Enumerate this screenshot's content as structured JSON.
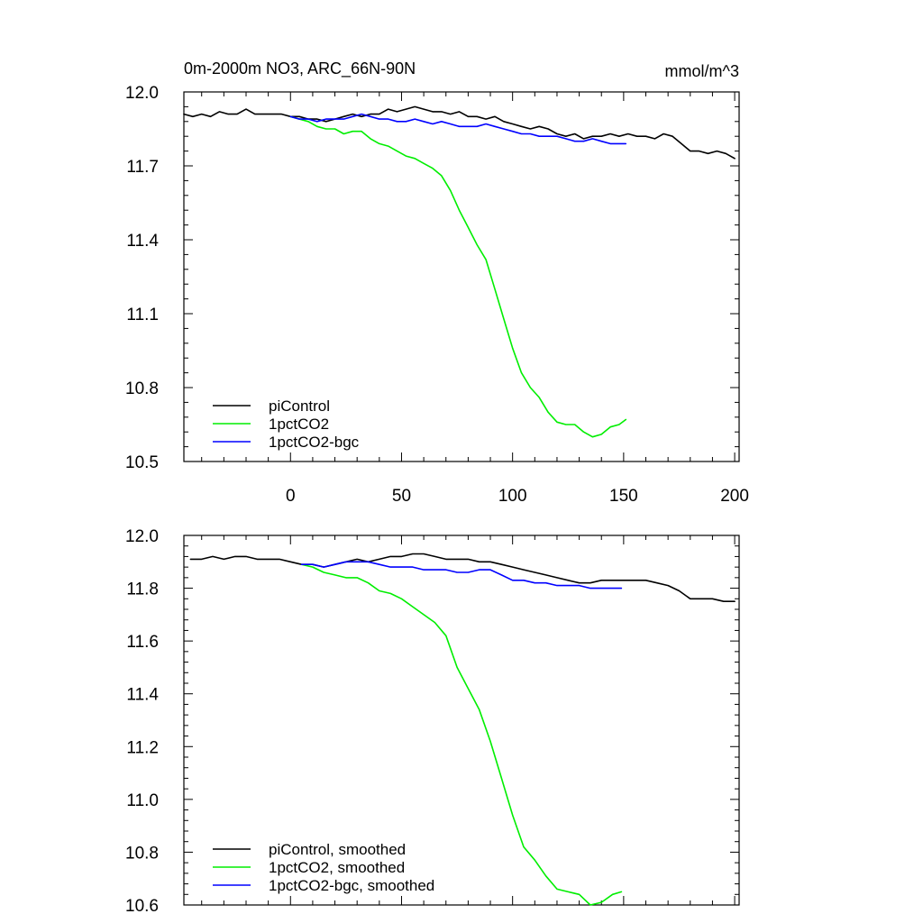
{
  "chart_data": [
    {
      "type": "line",
      "title": "0m-2000m NO3, ARC_66N-90N",
      "units": "mmol/m^3",
      "xlim": [
        -48,
        202
      ],
      "ylim": [
        10.5,
        12.0
      ],
      "xticks": [
        0,
        50,
        100,
        150,
        200
      ],
      "yticks": [
        10.5,
        10.8,
        11.1,
        11.4,
        11.7,
        12.0
      ],
      "ytick_labels": [
        "10.5",
        "10.8",
        "11.1",
        "11.4",
        "11.7",
        "12.0"
      ],
      "show_xtick_labels": true,
      "legend_position": "bottom-left",
      "series": [
        {
          "name": "piControl",
          "color": "#000000",
          "points": [
            [
              -48,
              11.91
            ],
            [
              -44,
              11.9
            ],
            [
              -40,
              11.91
            ],
            [
              -36,
              11.9
            ],
            [
              -32,
              11.92
            ],
            [
              -28,
              11.91
            ],
            [
              -24,
              11.91
            ],
            [
              -20,
              11.93
            ],
            [
              -16,
              11.91
            ],
            [
              -12,
              11.91
            ],
            [
              -8,
              11.91
            ],
            [
              -4,
              11.91
            ],
            [
              0,
              11.9
            ],
            [
              4,
              11.9
            ],
            [
              8,
              11.89
            ],
            [
              12,
              11.89
            ],
            [
              16,
              11.88
            ],
            [
              20,
              11.89
            ],
            [
              24,
              11.9
            ],
            [
              28,
              11.91
            ],
            [
              32,
              11.9
            ],
            [
              36,
              11.91
            ],
            [
              40,
              11.91
            ],
            [
              44,
              11.93
            ],
            [
              48,
              11.92
            ],
            [
              52,
              11.93
            ],
            [
              56,
              11.94
            ],
            [
              60,
              11.93
            ],
            [
              64,
              11.92
            ],
            [
              68,
              11.92
            ],
            [
              72,
              11.91
            ],
            [
              76,
              11.92
            ],
            [
              80,
              11.9
            ],
            [
              84,
              11.9
            ],
            [
              88,
              11.89
            ],
            [
              92,
              11.9
            ],
            [
              96,
              11.88
            ],
            [
              100,
              11.87
            ],
            [
              104,
              11.86
            ],
            [
              108,
              11.85
            ],
            [
              112,
              11.86
            ],
            [
              116,
              11.85
            ],
            [
              120,
              11.83
            ],
            [
              124,
              11.82
            ],
            [
              128,
              11.83
            ],
            [
              132,
              11.81
            ],
            [
              136,
              11.82
            ],
            [
              140,
              11.82
            ],
            [
              144,
              11.83
            ],
            [
              148,
              11.82
            ],
            [
              152,
              11.83
            ],
            [
              156,
              11.82
            ],
            [
              160,
              11.82
            ],
            [
              164,
              11.81
            ],
            [
              168,
              11.83
            ],
            [
              172,
              11.82
            ],
            [
              176,
              11.79
            ],
            [
              180,
              11.76
            ],
            [
              184,
              11.76
            ],
            [
              188,
              11.75
            ],
            [
              192,
              11.76
            ],
            [
              196,
              11.75
            ],
            [
              200,
              11.73
            ]
          ]
        },
        {
          "name": "1pctCO2",
          "color": "#00ee00",
          "points": [
            [
              0,
              11.9
            ],
            [
              4,
              11.89
            ],
            [
              8,
              11.88
            ],
            [
              12,
              11.86
            ],
            [
              16,
              11.85
            ],
            [
              20,
              11.85
            ],
            [
              24,
              11.83
            ],
            [
              28,
              11.84
            ],
            [
              32,
              11.84
            ],
            [
              36,
              11.81
            ],
            [
              40,
              11.79
            ],
            [
              44,
              11.78
            ],
            [
              48,
              11.76
            ],
            [
              52,
              11.74
            ],
            [
              56,
              11.73
            ],
            [
              60,
              11.71
            ],
            [
              64,
              11.69
            ],
            [
              68,
              11.66
            ],
            [
              72,
              11.6
            ],
            [
              76,
              11.52
            ],
            [
              80,
              11.45
            ],
            [
              84,
              11.38
            ],
            [
              88,
              11.32
            ],
            [
              92,
              11.2
            ],
            [
              96,
              11.08
            ],
            [
              100,
              10.96
            ],
            [
              104,
              10.86
            ],
            [
              108,
              10.8
            ],
            [
              112,
              10.76
            ],
            [
              116,
              10.7
            ],
            [
              120,
              10.66
            ],
            [
              124,
              10.65
            ],
            [
              128,
              10.65
            ],
            [
              132,
              10.62
            ],
            [
              136,
              10.6
            ],
            [
              140,
              10.61
            ],
            [
              144,
              10.64
            ],
            [
              148,
              10.65
            ],
            [
              151,
              10.67
            ]
          ]
        },
        {
          "name": "1pctCO2-bgc",
          "color": "#0000ff",
          "points": [
            [
              0,
              11.9
            ],
            [
              4,
              11.89
            ],
            [
              8,
              11.89
            ],
            [
              12,
              11.88
            ],
            [
              16,
              11.89
            ],
            [
              20,
              11.89
            ],
            [
              24,
              11.89
            ],
            [
              28,
              11.9
            ],
            [
              32,
              11.91
            ],
            [
              36,
              11.9
            ],
            [
              40,
              11.89
            ],
            [
              44,
              11.89
            ],
            [
              48,
              11.88
            ],
            [
              52,
              11.88
            ],
            [
              56,
              11.89
            ],
            [
              60,
              11.88
            ],
            [
              64,
              11.87
            ],
            [
              68,
              11.88
            ],
            [
              72,
              11.87
            ],
            [
              76,
              11.86
            ],
            [
              80,
              11.86
            ],
            [
              84,
              11.86
            ],
            [
              88,
              11.87
            ],
            [
              92,
              11.86
            ],
            [
              96,
              11.85
            ],
            [
              100,
              11.84
            ],
            [
              104,
              11.83
            ],
            [
              108,
              11.83
            ],
            [
              112,
              11.82
            ],
            [
              116,
              11.82
            ],
            [
              120,
              11.82
            ],
            [
              124,
              11.81
            ],
            [
              128,
              11.8
            ],
            [
              132,
              11.8
            ],
            [
              136,
              11.81
            ],
            [
              140,
              11.8
            ],
            [
              144,
              11.79
            ],
            [
              148,
              11.79
            ],
            [
              151,
              11.79
            ]
          ]
        }
      ]
    },
    {
      "type": "line",
      "title": "",
      "units": "",
      "xlim": [
        -48,
        202
      ],
      "ylim": [
        10.6,
        12.0
      ],
      "xticks": [
        0,
        50,
        100,
        150,
        200
      ],
      "yticks": [
        10.6,
        10.8,
        11.0,
        11.2,
        11.4,
        11.6,
        11.8,
        12.0
      ],
      "ytick_labels": [
        "10.6",
        "10.8",
        "11.0",
        "11.2",
        "11.4",
        "11.6",
        "11.8",
        "12.0"
      ],
      "show_xtick_labels": false,
      "legend_position": "bottom-left",
      "series": [
        {
          "name": "piControl, smoothed",
          "color": "#000000",
          "points": [
            [
              -45,
              11.91
            ],
            [
              -40,
              11.91
            ],
            [
              -35,
              11.92
            ],
            [
              -30,
              11.91
            ],
            [
              -25,
              11.92
            ],
            [
              -20,
              11.92
            ],
            [
              -15,
              11.91
            ],
            [
              -10,
              11.91
            ],
            [
              -5,
              11.91
            ],
            [
              0,
              11.9
            ],
            [
              5,
              11.89
            ],
            [
              10,
              11.89
            ],
            [
              15,
              11.88
            ],
            [
              20,
              11.89
            ],
            [
              25,
              11.9
            ],
            [
              30,
              11.91
            ],
            [
              35,
              11.9
            ],
            [
              40,
              11.91
            ],
            [
              45,
              11.92
            ],
            [
              50,
              11.92
            ],
            [
              55,
              11.93
            ],
            [
              60,
              11.93
            ],
            [
              65,
              11.92
            ],
            [
              70,
              11.91
            ],
            [
              75,
              11.91
            ],
            [
              80,
              11.91
            ],
            [
              85,
              11.9
            ],
            [
              90,
              11.9
            ],
            [
              95,
              11.89
            ],
            [
              100,
              11.88
            ],
            [
              105,
              11.87
            ],
            [
              110,
              11.86
            ],
            [
              115,
              11.85
            ],
            [
              120,
              11.84
            ],
            [
              125,
              11.83
            ],
            [
              130,
              11.82
            ],
            [
              135,
              11.82
            ],
            [
              140,
              11.83
            ],
            [
              145,
              11.83
            ],
            [
              150,
              11.83
            ],
            [
              155,
              11.83
            ],
            [
              160,
              11.83
            ],
            [
              165,
              11.82
            ],
            [
              170,
              11.81
            ],
            [
              175,
              11.79
            ],
            [
              180,
              11.76
            ],
            [
              185,
              11.76
            ],
            [
              190,
              11.76
            ],
            [
              195,
              11.75
            ],
            [
              200,
              11.75
            ]
          ]
        },
        {
          "name": "1pctCO2, smoothed",
          "color": "#00ee00",
          "points": [
            [
              5,
              11.89
            ],
            [
              10,
              11.88
            ],
            [
              15,
              11.86
            ],
            [
              20,
              11.85
            ],
            [
              25,
              11.84
            ],
            [
              30,
              11.84
            ],
            [
              35,
              11.82
            ],
            [
              40,
              11.79
            ],
            [
              45,
              11.78
            ],
            [
              50,
              11.76
            ],
            [
              55,
              11.73
            ],
            [
              60,
              11.7
            ],
            [
              65,
              11.67
            ],
            [
              70,
              11.62
            ],
            [
              75,
              11.5
            ],
            [
              80,
              11.42
            ],
            [
              85,
              11.34
            ],
            [
              90,
              11.22
            ],
            [
              95,
              11.08
            ],
            [
              100,
              10.94
            ],
            [
              105,
              10.82
            ],
            [
              110,
              10.77
            ],
            [
              115,
              10.71
            ],
            [
              120,
              10.66
            ],
            [
              125,
              10.65
            ],
            [
              130,
              10.64
            ],
            [
              135,
              10.6
            ],
            [
              140,
              10.61
            ],
            [
              145,
              10.64
            ],
            [
              149,
              10.65
            ]
          ]
        },
        {
          "name": "1pctCO2-bgc, smoothed",
          "color": "#0000ff",
          "points": [
            [
              5,
              11.89
            ],
            [
              10,
              11.89
            ],
            [
              15,
              11.88
            ],
            [
              20,
              11.89
            ],
            [
              25,
              11.9
            ],
            [
              30,
              11.9
            ],
            [
              35,
              11.9
            ],
            [
              40,
              11.89
            ],
            [
              45,
              11.88
            ],
            [
              50,
              11.88
            ],
            [
              55,
              11.88
            ],
            [
              60,
              11.87
            ],
            [
              65,
              11.87
            ],
            [
              70,
              11.87
            ],
            [
              75,
              11.86
            ],
            [
              80,
              11.86
            ],
            [
              85,
              11.87
            ],
            [
              90,
              11.87
            ],
            [
              95,
              11.85
            ],
            [
              100,
              11.83
            ],
            [
              105,
              11.83
            ],
            [
              110,
              11.82
            ],
            [
              115,
              11.82
            ],
            [
              120,
              11.81
            ],
            [
              125,
              11.81
            ],
            [
              130,
              11.81
            ],
            [
              135,
              11.8
            ],
            [
              140,
              11.8
            ],
            [
              145,
              11.8
            ],
            [
              149,
              11.8
            ]
          ]
        }
      ]
    }
  ]
}
